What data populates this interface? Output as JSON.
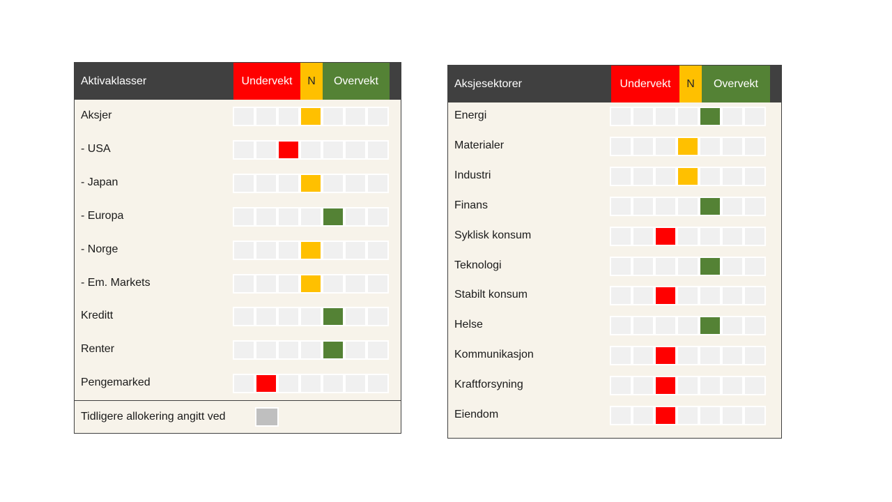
{
  "left": {
    "header": {
      "title": "Aktivaklasser",
      "under": "Undervekt",
      "neutral": "N",
      "over": "Overvekt"
    },
    "rows": [
      {
        "label": "Aksjer",
        "level": "neutral",
        "position": 4
      },
      {
        "label": "- USA",
        "level": "under",
        "position": 3
      },
      {
        "label": "- Japan",
        "level": "neutral",
        "position": 4
      },
      {
        "label": "- Europa",
        "level": "over",
        "position": 5
      },
      {
        "label": "- Norge",
        "level": "neutral",
        "position": 4
      },
      {
        "label": "- Em. Markets",
        "level": "neutral",
        "position": 4
      },
      {
        "label": "Kreditt",
        "level": "over",
        "position": 5
      },
      {
        "label": "Renter",
        "level": "over",
        "position": 5
      },
      {
        "label": "Pengemarked",
        "level": "under",
        "position": 2
      }
    ],
    "legend": {
      "label": "Tidligere allokering angitt ved",
      "color": "#bfbfbf"
    }
  },
  "right": {
    "header": {
      "title": "Aksjesektorer",
      "under": "Undervekt",
      "neutral": "N",
      "over": "Overvekt"
    },
    "rows": [
      {
        "label": "Energi",
        "level": "over",
        "position": 5
      },
      {
        "label": "Materialer",
        "level": "neutral",
        "position": 4
      },
      {
        "label": "Industri",
        "level": "neutral",
        "position": 4
      },
      {
        "label": "Finans",
        "level": "over",
        "position": 5
      },
      {
        "label": "Syklisk konsum",
        "level": "under",
        "position": 3
      },
      {
        "label": "Teknologi",
        "level": "over",
        "position": 5
      },
      {
        "label": "Stabilt konsum",
        "level": "under",
        "position": 3
      },
      {
        "label": "Helse",
        "level": "over",
        "position": 5
      },
      {
        "label": "Kommunikasjon",
        "level": "under",
        "position": 3
      },
      {
        "label": "Kraftforsyning",
        "level": "under",
        "position": 3
      },
      {
        "label": "Eiendom",
        "level": "under",
        "position": 3
      }
    ]
  },
  "colors": {
    "under": "#ff0000",
    "neutral": "#ffc000",
    "over": "#548235",
    "header": "#404040",
    "empty": "#f0f0f0"
  }
}
